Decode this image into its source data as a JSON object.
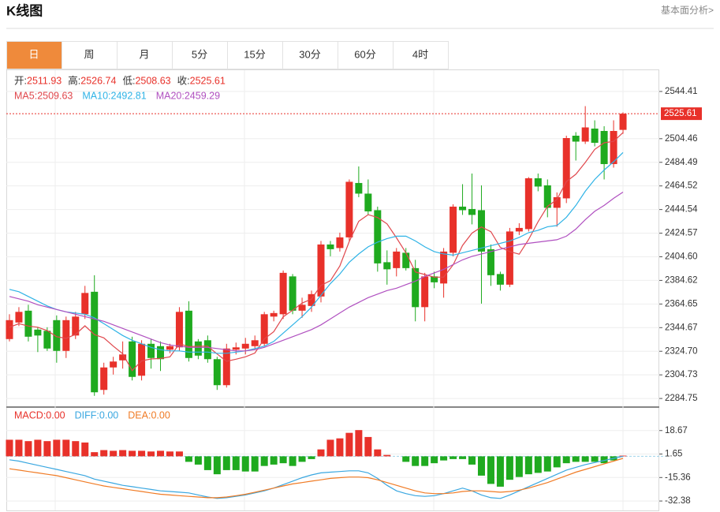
{
  "header": {
    "title": "K线图",
    "link": "基本面分析>"
  },
  "tabs": {
    "items": [
      "日",
      "周",
      "月",
      "5分",
      "15分",
      "30分",
      "60分",
      "4时"
    ],
    "active": 0
  },
  "chart_data": [
    {
      "type": "candlestick",
      "ohlc_names": [
        "开",
        "高",
        "低",
        "收"
      ],
      "separator": ":",
      "up_color": "#e8312a",
      "down_color": "#1faa1f",
      "open": [
        2335,
        2349,
        2359,
        2343,
        2342,
        2351,
        2325,
        2338,
        2356,
        2375,
        2292,
        2311,
        2317,
        2333,
        2304,
        2331,
        2329,
        2326,
        2328,
        2359,
        2333,
        2334,
        2318,
        2296,
        2326,
        2327,
        2329,
        2331,
        2354,
        2356,
        2388,
        2359,
        2363,
        2371,
        2415,
        2412,
        2421,
        2467,
        2458,
        2444,
        2400,
        2395,
        2408,
        2395,
        2362,
        2388,
        2382,
        2408,
        2447,
        2445,
        2444,
        2411,
        2390,
        2381,
        2426,
        2428,
        2471,
        2465,
        2446,
        2454,
        2507,
        2502,
        2513,
        2511,
        2483,
        2511.93
      ],
      "high": [
        2356,
        2362,
        2364,
        2345,
        2345,
        2355,
        2354,
        2358,
        2380,
        2389,
        2315,
        2320,
        2333,
        2337,
        2334,
        2335,
        2333,
        2331,
        2362,
        2367,
        2335,
        2338,
        2320,
        2331,
        2332,
        2336,
        2338,
        2358,
        2359,
        2393,
        2390,
        2370,
        2376,
        2418,
        2418,
        2425,
        2470,
        2481,
        2470,
        2447,
        2410,
        2412,
        2412,
        2402,
        2391,
        2392,
        2412,
        2449,
        2466,
        2475,
        2465,
        2415,
        2392,
        2429,
        2433,
        2472,
        2475,
        2470,
        2459,
        2507,
        2510,
        2532,
        2520,
        2515,
        2520,
        2526.74
      ],
      "low": [
        2333,
        2346,
        2333,
        2324,
        2325,
        2315,
        2319,
        2335,
        2352,
        2287,
        2288,
        2305,
        2310,
        2300,
        2300,
        2310,
        2308,
        2323,
        2325,
        2316,
        2318,
        2315,
        2292,
        2294,
        2322,
        2322,
        2326,
        2329,
        2350,
        2352,
        2356,
        2353,
        2358,
        2366,
        2405,
        2409,
        2418,
        2455,
        2440,
        2392,
        2381,
        2388,
        2393,
        2350,
        2350,
        2378,
        2370,
        2405,
        2440,
        2432,
        2365,
        2380,
        2376,
        2379,
        2423,
        2426,
        2460,
        2438,
        2430,
        2450,
        2486,
        2500,
        2498,
        2470,
        2480,
        2508.63
      ],
      "close": [
        2351,
        2358,
        2337,
        2338,
        2327,
        2325,
        2351,
        2354,
        2374,
        2290,
        2311,
        2316,
        2322,
        2303,
        2331,
        2319,
        2318,
        2329,
        2358,
        2319,
        2321,
        2318,
        2296,
        2327,
        2328,
        2331,
        2334,
        2356,
        2357,
        2391,
        2359,
        2364,
        2373,
        2415,
        2411,
        2421,
        2468,
        2458,
        2443,
        2399,
        2394,
        2409,
        2395,
        2362,
        2388,
        2383,
        2409,
        2447,
        2444,
        2440,
        2409,
        2389,
        2381,
        2426,
        2429,
        2471,
        2464,
        2446,
        2455,
        2505,
        2502,
        2514,
        2501,
        2483,
        2511,
        2525.61
      ],
      "ylim": [
        2278.15,
        2562.38
      ],
      "yticks": [
        2544.41,
        2504.46,
        2484.49,
        2464.52,
        2444.54,
        2424.57,
        {
          "value": 2404.6,
          "label": "2404.60"
        },
        2384.62,
        2364.65,
        2344.67,
        {
          "value": 2324.7,
          "label": "2324.70"
        },
        2304.73,
        2284.75
      ],
      "grid": true,
      "series": [
        {
          "name": "MA5",
          "color": "#e0474c",
          "values": [
            2345,
            2348,
            2346,
            2345,
            2342.2,
            2337,
            2335.6,
            2339,
            2346.2,
            2338.8,
            2336,
            2329,
            2322.6,
            2308.4,
            2316.6,
            2318.2,
            2318.6,
            2320,
            2331,
            2328.6,
            2329,
            2329,
            2322.4,
            2316.2,
            2318,
            2320,
            2323.2,
            2335.2,
            2341.2,
            2353.8,
            2359.4,
            2365.4,
            2368.8,
            2380.4,
            2384.4,
            2396.8,
            2417.6,
            2434.6,
            2440.2,
            2437.8,
            2432.4,
            2420.6,
            2408,
            2391.8,
            2389.6,
            2387.4,
            2387.4,
            2397.8,
            2414.2,
            2424.6,
            2429.8,
            2425.8,
            2412.6,
            2409,
            2406.8,
            2419.2,
            2434.2,
            2447.2,
            2453,
            2468.2,
            2474.4,
            2484.4,
            2495.4,
            2501,
            2502.2,
            2509.63
          ]
        },
        {
          "name": "MA10",
          "color": "#2fb3e6",
          "values": [
            2377,
            2375,
            2371,
            2367,
            2363,
            2360,
            2358,
            2357,
            2356,
            2353,
            2348,
            2343,
            2338,
            2334,
            2331,
            2328,
            2326,
            2325,
            2325,
            2324,
            2324,
            2324,
            2323,
            2323,
            2324,
            2325,
            2327,
            2329,
            2333,
            2340,
            2347,
            2354,
            2362,
            2372,
            2382,
            2390,
            2400,
            2407,
            2413,
            2417,
            2420,
            2422,
            2422,
            2418,
            2413,
            2409,
            2407,
            2406,
            2408,
            2410,
            2412,
            2414,
            2416,
            2418,
            2421,
            2425,
            2427,
            2430,
            2431,
            2438,
            2448,
            2460,
            2470,
            2478,
            2485,
            2492.81
          ]
        },
        {
          "name": "MA20",
          "color": "#b050c0",
          "values": [
            2371,
            2369,
            2367,
            2364,
            2362,
            2360,
            2358,
            2356,
            2354,
            2352,
            2350,
            2347,
            2344,
            2341,
            2338,
            2335,
            2332,
            2330,
            2329,
            2328,
            2328,
            2328,
            2327,
            2326,
            2325,
            2325,
            2326,
            2328,
            2331,
            2334,
            2337,
            2340,
            2343,
            2347,
            2352,
            2357,
            2362,
            2366,
            2370,
            2373,
            2376,
            2378,
            2381,
            2384,
            2388,
            2391,
            2394,
            2398,
            2402,
            2405,
            2407,
            2409,
            2411,
            2413,
            2415,
            2416,
            2417,
            2418,
            2419,
            2422,
            2428,
            2436,
            2443,
            2448,
            2454,
            2459.29
          ]
        }
      ]
    },
    {
      "type": "macd",
      "bar_name": "MACD",
      "bar_color": "#e8312a",
      "bar_down_color": "#1faa1f",
      "separator": ":",
      "legend_values": [
        "0.00",
        "0.00",
        "0.00"
      ],
      "values": [
        12,
        12,
        11,
        12,
        11,
        12,
        12,
        11,
        10,
        3,
        4.5,
        4,
        4.5,
        4,
        4,
        3.5,
        4,
        3.5,
        3.5,
        -4,
        -6,
        -10,
        -13,
        -10,
        -10,
        -11,
        -11,
        -7,
        -6,
        -5,
        -7,
        -4,
        -2,
        5,
        12,
        13,
        17,
        19,
        14,
        5,
        1,
        0,
        -4,
        -7,
        -7,
        -5,
        -3,
        -2,
        -2,
        -6,
        -14,
        -20,
        -22,
        -17,
        -15,
        -13,
        -12,
        -11,
        -8,
        -5,
        -4,
        -4,
        -4,
        -5,
        -3,
        0.5
      ],
      "ylim": [
        -39.2,
        35.1
      ],
      "yticks": [
        18.67,
        1.65,
        -15.36,
        -32.38
      ],
      "grid": true,
      "series": [
        {
          "name": "DIFF",
          "color": "#3aa7e0",
          "values": [
            -2.5,
            -3.5,
            -5,
            -6.5,
            -8,
            -9.5,
            -11,
            -12.5,
            -14,
            -16.5,
            -18,
            -19.5,
            -21,
            -22,
            -23,
            -24,
            -25,
            -25.5,
            -26,
            -26.5,
            -28,
            -29.5,
            -30.5,
            -30,
            -29,
            -28,
            -26.5,
            -25,
            -23,
            -20.5,
            -18,
            -15.5,
            -13.5,
            -12,
            -11.5,
            -11,
            -10.5,
            -10.5,
            -12,
            -16,
            -21,
            -25,
            -27,
            -28.5,
            -29,
            -28.5,
            -27,
            -25,
            -23,
            -25,
            -28,
            -30,
            -30.5,
            -28,
            -25,
            -22,
            -19,
            -16,
            -13,
            -10,
            -8,
            -6,
            -4.5,
            -3,
            -1.5,
            0
          ]
        },
        {
          "name": "DEA",
          "color": "#f07b25",
          "values": [
            -9,
            -10,
            -11,
            -12,
            -13,
            -14,
            -15.5,
            -17,
            -18.5,
            -20,
            -21.5,
            -22.5,
            -23.5,
            -24.5,
            -25.5,
            -26.5,
            -27.5,
            -28,
            -28.5,
            -29,
            -29.5,
            -30,
            -30,
            -29.5,
            -28.5,
            -27.5,
            -26,
            -24.5,
            -23,
            -21.5,
            -20,
            -19,
            -18,
            -17,
            -16,
            -15.5,
            -15,
            -15,
            -15.5,
            -17,
            -19,
            -21,
            -23,
            -25,
            -26.5,
            -27,
            -27,
            -26.5,
            -25.5,
            -25,
            -25,
            -25.5,
            -26,
            -25.5,
            -24.5,
            -23,
            -21,
            -19,
            -16.5,
            -14,
            -11.5,
            -9.5,
            -7.5,
            -5.5,
            -3.5,
            -1.5
          ]
        }
      ]
    }
  ]
}
